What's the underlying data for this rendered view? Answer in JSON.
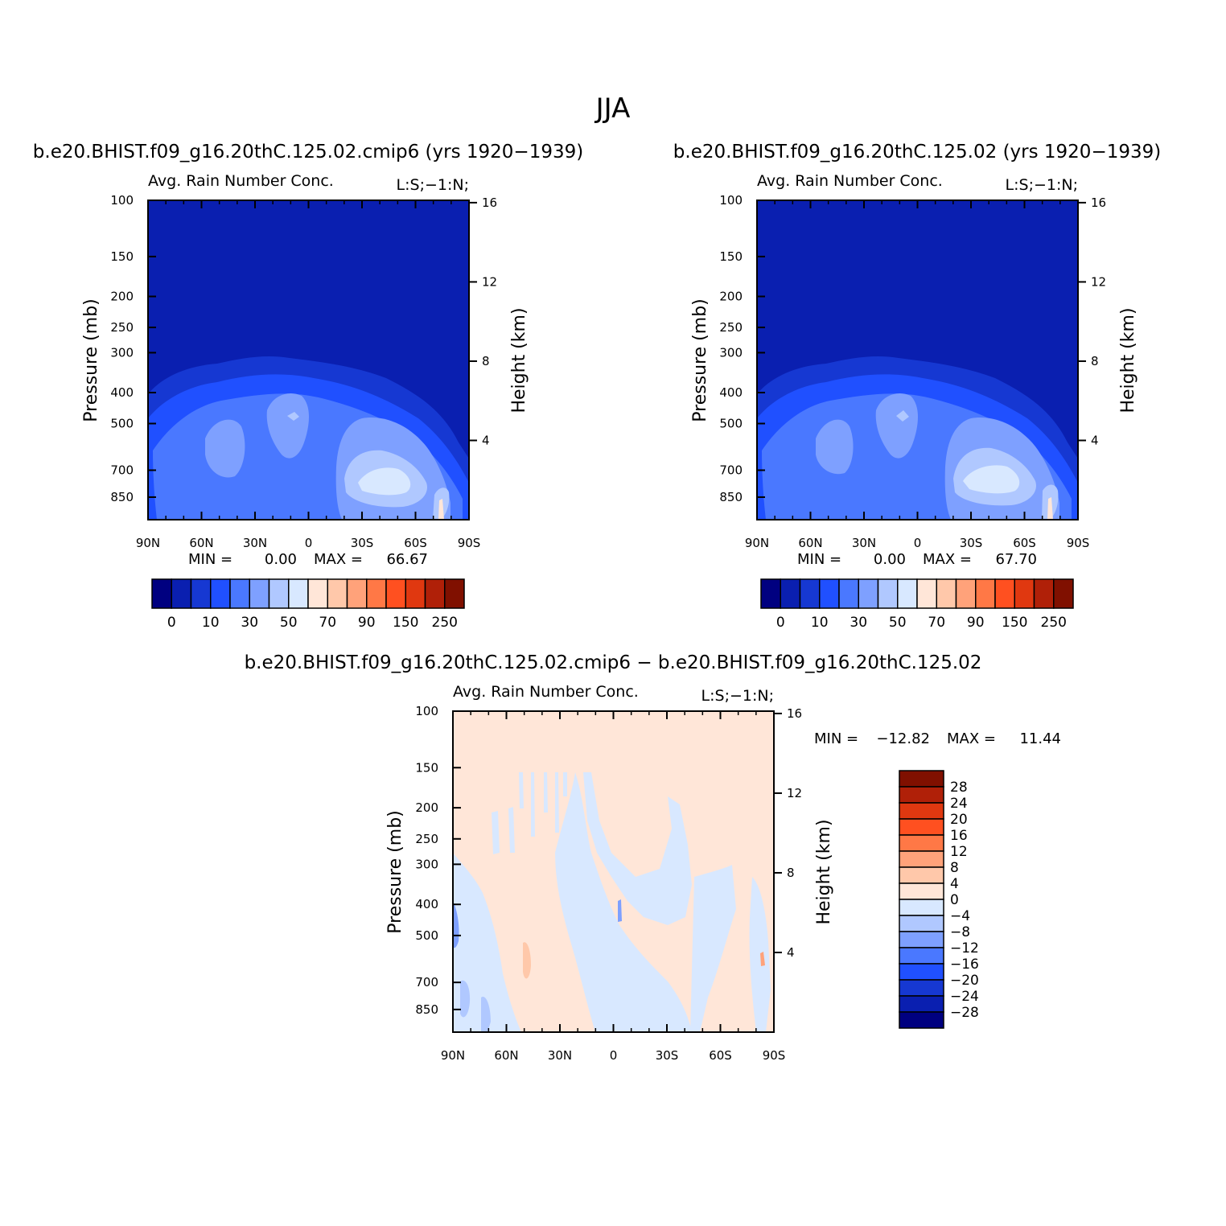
{
  "figure": {
    "title": "JJA"
  },
  "colors": {
    "abs_palette": [
      "#000080",
      "#0a1fb0",
      "#1638d2",
      "#2050ff",
      "#4a78ff",
      "#7ea0ff",
      "#b0c8ff",
      "#d8e8ff",
      "#ffe6d8",
      "#ffc8aa",
      "#ffa27a",
      "#ff7846",
      "#ff5020",
      "#e03810",
      "#b02008",
      "#801000"
    ],
    "diff_palette": [
      "#000080",
      "#0a1fb0",
      "#1638d2",
      "#2050ff",
      "#4a78ff",
      "#7ea0ff",
      "#b0c8ff",
      "#d8e8ff",
      "#ffe6d8",
      "#ffc8aa",
      "#ffa27a",
      "#ff7846",
      "#ff5020",
      "#e03810",
      "#b02008",
      "#801000"
    ]
  },
  "chart_data": [
    {
      "type": "heatmap",
      "panel": "left",
      "case_title": "b.e20.BHIST.f09_g16.20thC.125.02.cmip6 (yrs 1920−1939)",
      "left_string": "Avg. Rain Number Conc.",
      "right_string": "L:S;−1:N;",
      "xlabel": "",
      "ylabel": "Pressure (mb)",
      "y2label": "Height (km)",
      "x_ticks": [
        "90N",
        "60N",
        "30N",
        "0",
        "30S",
        "60S",
        "90S"
      ],
      "x_values": [
        90,
        60,
        30,
        0,
        -30,
        -60,
        -90
      ],
      "y_ticks": [
        100,
        150,
        200,
        250,
        300,
        400,
        500,
        700,
        850
      ],
      "y2_ticks": [
        16,
        12,
        8,
        4
      ],
      "ylim": [
        100,
        1000
      ],
      "min_label": "MIN =",
      "min_value": "0.00",
      "max_label": "MAX =",
      "max_value": "66.67",
      "colorbar_labels": [
        "0",
        "10",
        "30",
        "50",
        "70",
        "90",
        "150",
        "250"
      ],
      "contour_levels": [
        0,
        5,
        10,
        20,
        30,
        40,
        50,
        60,
        70,
        80,
        90,
        100,
        150,
        200,
        250
      ]
    },
    {
      "type": "heatmap",
      "panel": "right",
      "case_title": "b.e20.BHIST.f09_g16.20thC.125.02 (yrs 1920−1939)",
      "left_string": "Avg. Rain Number Conc.",
      "right_string": "L:S;−1:N;",
      "xlabel": "",
      "ylabel": "Pressure (mb)",
      "y2label": "Height (km)",
      "x_ticks": [
        "90N",
        "60N",
        "30N",
        "0",
        "30S",
        "60S",
        "90S"
      ],
      "x_values": [
        90,
        60,
        30,
        0,
        -30,
        -60,
        -90
      ],
      "y_ticks": [
        100,
        150,
        200,
        250,
        300,
        400,
        500,
        700,
        850
      ],
      "y2_ticks": [
        16,
        12,
        8,
        4
      ],
      "ylim": [
        100,
        1000
      ],
      "min_label": "MIN =",
      "min_value": "0.00",
      "max_label": "MAX =",
      "max_value": "67.70",
      "colorbar_labels": [
        "0",
        "10",
        "30",
        "50",
        "70",
        "90",
        "150",
        "250"
      ],
      "contour_levels": [
        0,
        5,
        10,
        20,
        30,
        40,
        50,
        60,
        70,
        80,
        90,
        100,
        150,
        200,
        250
      ]
    },
    {
      "type": "heatmap",
      "panel": "diff",
      "case_title": "b.e20.BHIST.f09_g16.20thC.125.02.cmip6 − b.e20.BHIST.f09_g16.20thC.125.02",
      "left_string": "Avg. Rain Number Conc.",
      "right_string": "L:S;−1:N;",
      "xlabel": "",
      "ylabel": "Pressure (mb)",
      "y2label": "Height (km)",
      "x_ticks": [
        "90N",
        "60N",
        "30N",
        "0",
        "30S",
        "60S",
        "90S"
      ],
      "x_values": [
        90,
        60,
        30,
        0,
        -30,
        -60,
        -90
      ],
      "y_ticks": [
        100,
        150,
        200,
        250,
        300,
        400,
        500,
        700,
        850
      ],
      "y2_ticks": [
        16,
        12,
        8,
        4
      ],
      "ylim": [
        100,
        1000
      ],
      "min_label": "MIN =",
      "min_value": "−12.82",
      "max_label": "MAX =",
      "max_value": "11.44",
      "colorbar_labels": [
        "28",
        "24",
        "20",
        "16",
        "12",
        "8",
        "4",
        "0",
        "−4",
        "−8",
        "−12",
        "−16",
        "−20",
        "−24",
        "−28"
      ],
      "contour_levels": [
        -28,
        -24,
        -20,
        -16,
        -12,
        -8,
        -4,
        0,
        4,
        8,
        12,
        16,
        20,
        24,
        28
      ]
    }
  ]
}
